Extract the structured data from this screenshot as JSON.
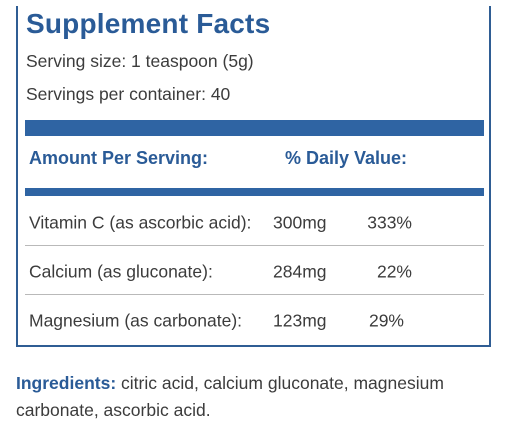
{
  "facts": {
    "title": "Supplement Facts",
    "serving_size": "Serving size: 1 teaspoon (5g)",
    "servings_per_container": "Servings per container: 40",
    "header_amount": "Amount  Per Serving:",
    "header_daily_value": "% Daily Value:",
    "rows": [
      {
        "nutrient": "Vitamin C (as ascorbic acid):",
        "amount": "300mg",
        "dv": "333%"
      },
      {
        "nutrient": "Calcium (as gluconate):",
        "amount": "284mg",
        "dv": "22%"
      },
      {
        "nutrient": "Magnesium (as carbonate):",
        "amount": "123mg",
        "dv": "29%"
      }
    ]
  },
  "ingredients": {
    "label": "Ingredients:",
    "text": " citric acid, calcium gluconate, magnesium carbonate, ascorbic acid."
  },
  "colors": {
    "accent": "#2a5b97",
    "bar": "#2f64a3",
    "text": "#3c3c3c"
  }
}
